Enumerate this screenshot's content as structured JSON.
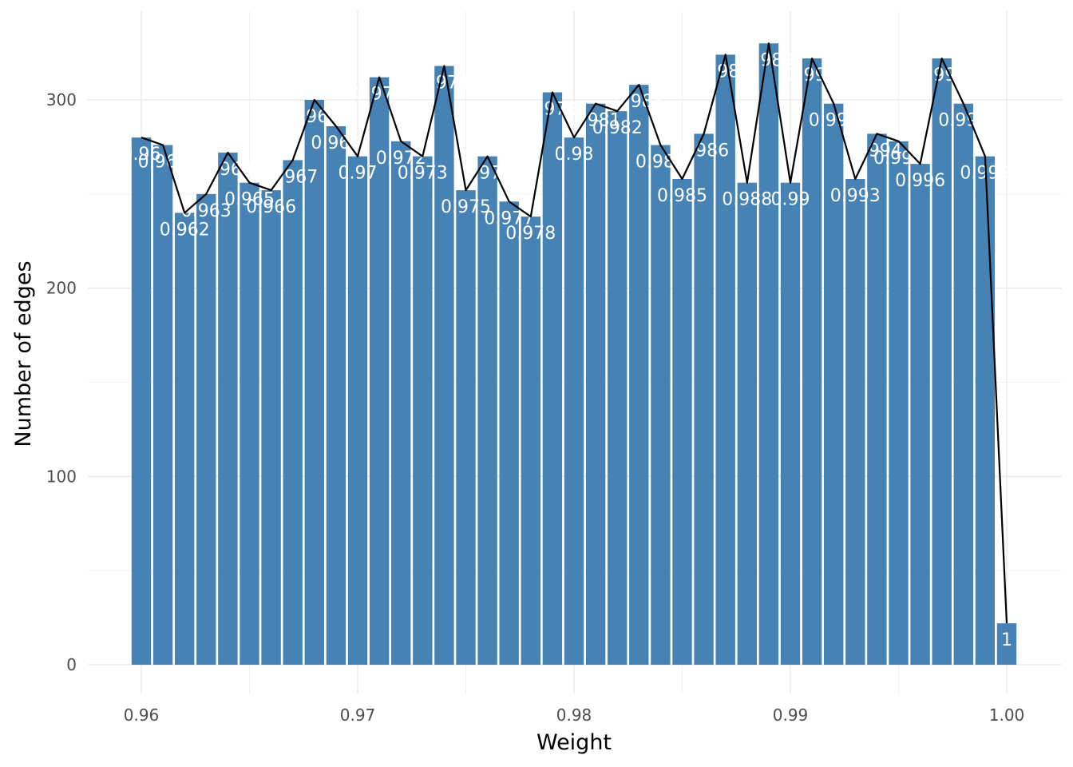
{
  "chart_data": {
    "type": "bar",
    "title": "",
    "xlabel": "Weight",
    "ylabel": "Number of edges",
    "xlim": [
      0.958,
      1.0025
    ],
    "ylim": [
      0,
      332
    ],
    "x_ticks": [
      0.96,
      0.97,
      0.98,
      0.99,
      1.0
    ],
    "x_tick_labels": [
      "0.96",
      "0.97",
      "0.98",
      "0.99",
      "1.00"
    ],
    "y_ticks": [
      0,
      100,
      200,
      300
    ],
    "y_tick_labels": [
      "0",
      "100",
      "200",
      "300"
    ],
    "grid": true,
    "legend": "none",
    "bar_color": "#4682B4",
    "line_color": "#000000",
    "label_color": "#ffffff",
    "x": [
      0.96,
      0.961,
      0.962,
      0.963,
      0.964,
      0.965,
      0.966,
      0.967,
      0.968,
      0.969,
      0.97,
      0.971,
      0.972,
      0.973,
      0.974,
      0.975,
      0.976,
      0.977,
      0.978,
      0.979,
      0.98,
      0.981,
      0.982,
      0.983,
      0.984,
      0.985,
      0.986,
      0.987,
      0.988,
      0.989,
      0.99,
      0.991,
      0.992,
      0.993,
      0.994,
      0.995,
      0.996,
      0.997,
      0.998,
      0.999,
      1.0
    ],
    "values": [
      280,
      276,
      240,
      250,
      272,
      256,
      252,
      268,
      300,
      286,
      270,
      312,
      278,
      270,
      318,
      252,
      270,
      246,
      238,
      304,
      280,
      298,
      294,
      308,
      276,
      258,
      282,
      324,
      256,
      330,
      256,
      322,
      298,
      258,
      282,
      278,
      266,
      322,
      298,
      270,
      22
    ],
    "labels": [
      "0.96",
      "0.961",
      "0.962",
      "0.963",
      "0.964",
      "0.965",
      "0.966",
      "0.967",
      "0.968",
      "0.969",
      "0.97",
      "0.971",
      "0.972",
      "0.973",
      "0.974",
      "0.975",
      "0.976",
      "0.977",
      "0.978",
      "0.979",
      "0.98",
      "0.981",
      "0.982",
      "0.983",
      "0.984",
      "0.985",
      "0.986",
      "0.987",
      "0.988",
      "0.989",
      "0.99",
      "0.991",
      "0.992",
      "0.993",
      "0.994",
      "0.995",
      "0.996",
      "0.997",
      "0.998",
      "0.999",
      "1"
    ]
  }
}
